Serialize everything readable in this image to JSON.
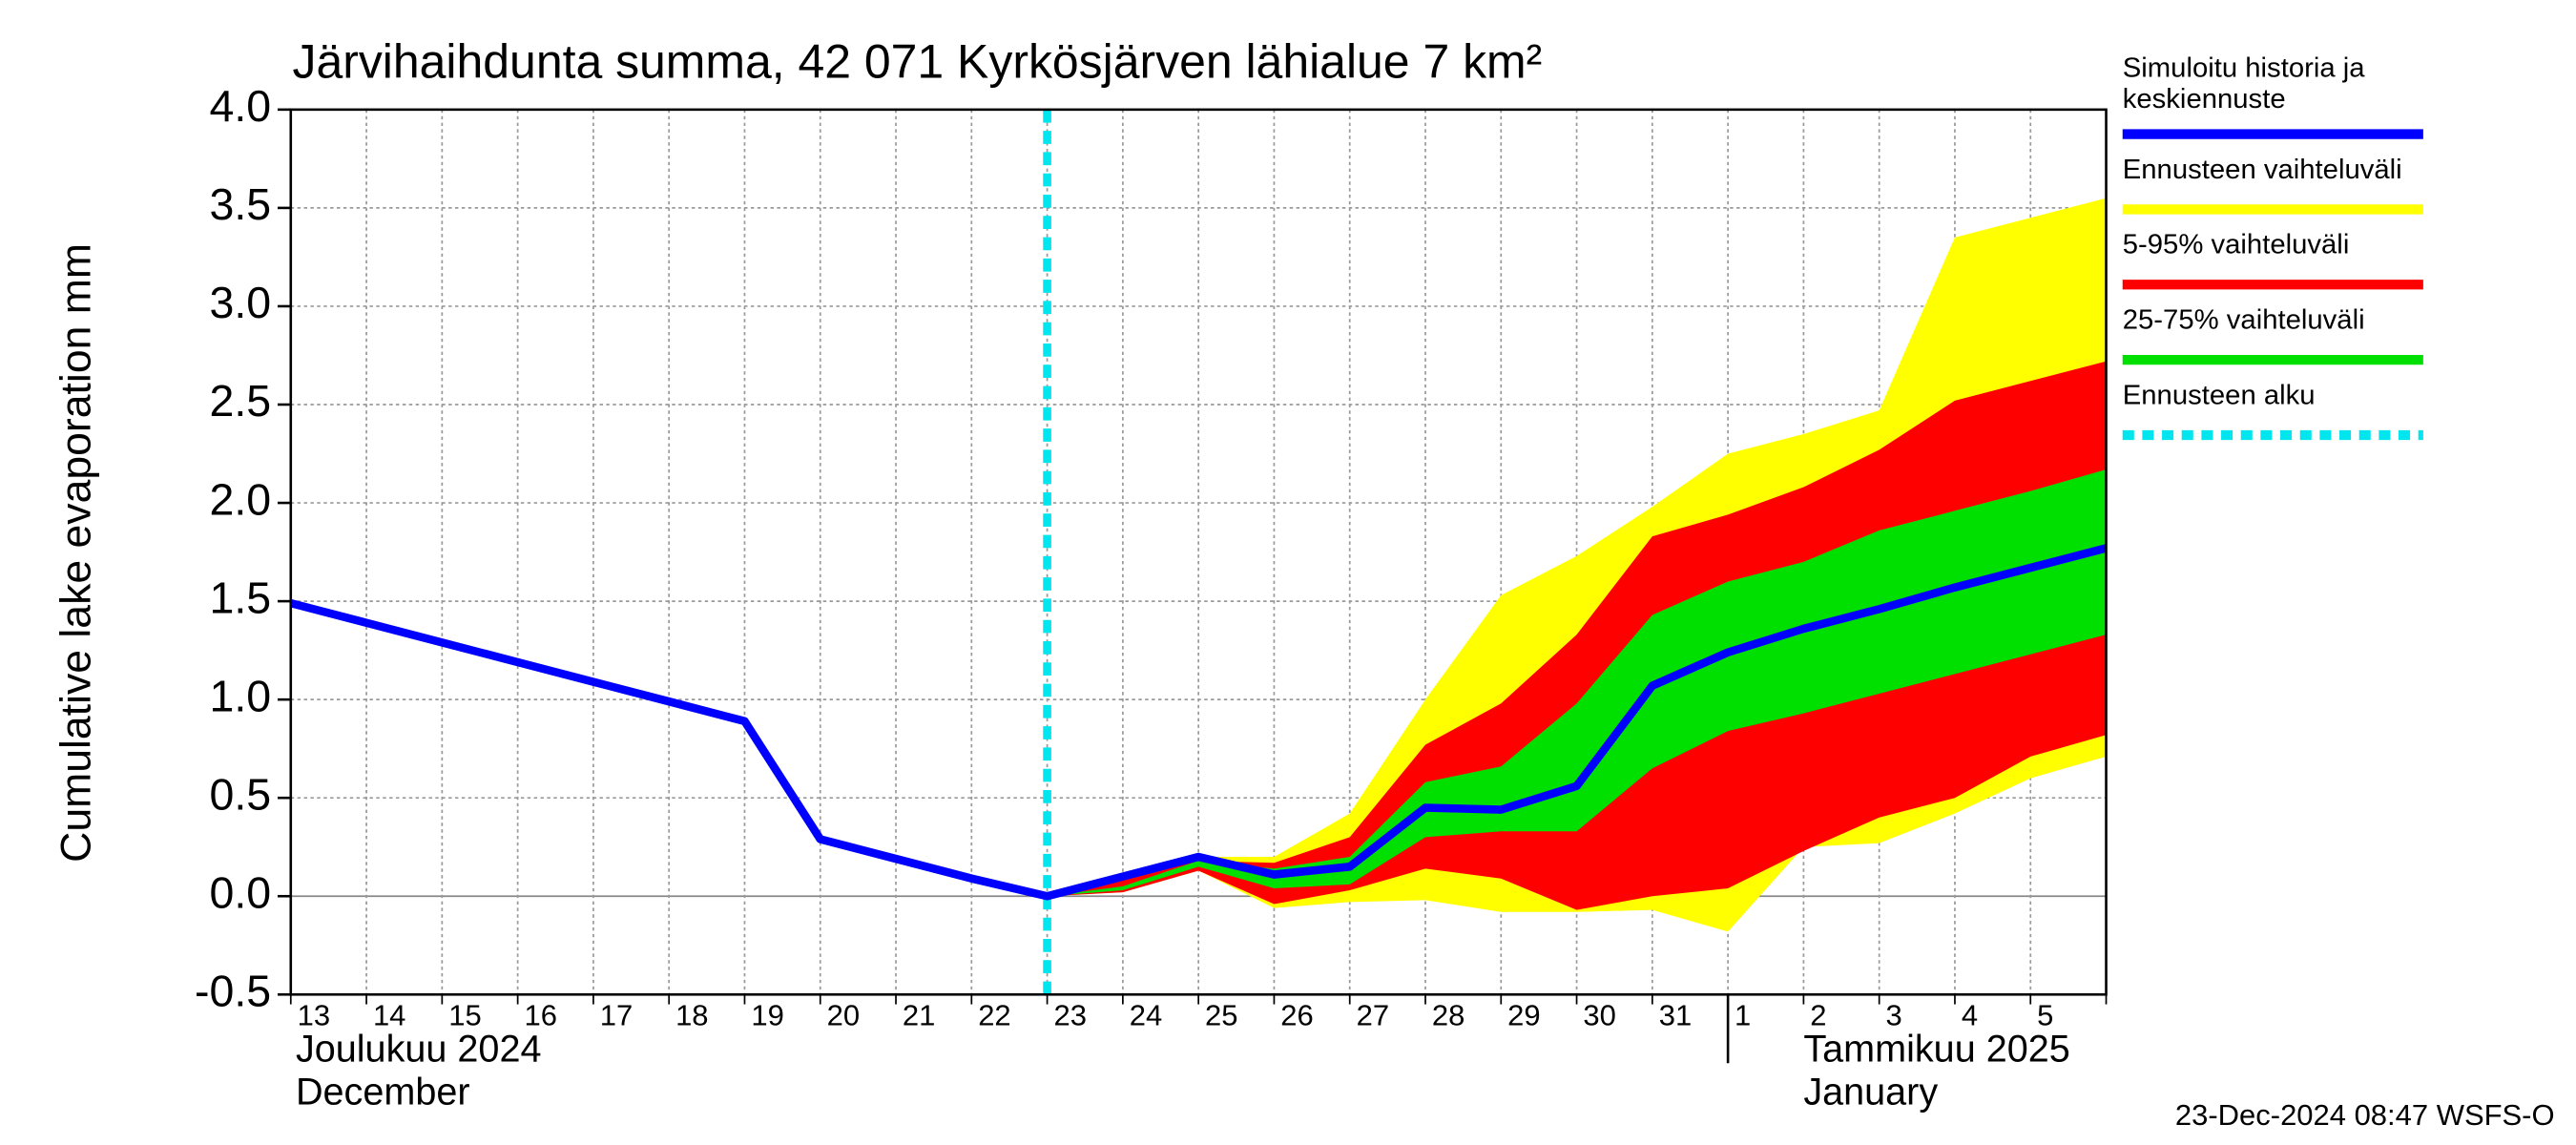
{
  "chart_data": {
    "type": "line",
    "title": "Järvihaihdunta summa, 42 071 Kyrkösjärven lähialue 7 km²",
    "y_label": "Cumulative lake evaporation   mm",
    "month_labels": [
      {
        "at": "13",
        "lines": [
          "Joulukuu  2024",
          "December"
        ]
      },
      {
        "at": "1",
        "lines": [
          "Tammikuu  2025",
          "January"
        ]
      }
    ],
    "timestamp": "23-Dec-2024 08:47 WSFS-O",
    "categories": [
      "13",
      "14",
      "15",
      "16",
      "17",
      "18",
      "19",
      "20",
      "21",
      "22",
      "23",
      "24",
      "25",
      "26",
      "27",
      "28",
      "29",
      "30",
      "31",
      "1",
      "2",
      "3",
      "4",
      "5",
      null
    ],
    "ylim": [
      -0.5,
      4.0
    ],
    "yticks": [
      -0.5,
      {
        "value": 0,
        "label": "0.0"
      },
      0.5,
      {
        "value": 1,
        "label": "1.0"
      },
      1.5,
      {
        "value": 2,
        "label": "2.0"
      },
      2.5,
      {
        "value": 3,
        "label": "3.0"
      },
      3.5,
      {
        "value": 4,
        "label": "4.0"
      }
    ],
    "grid": true,
    "bands": [
      {
        "name": "Ennusteen vaihteluväli",
        "color": "#ffff00",
        "upper": [
          null,
          null,
          null,
          null,
          null,
          null,
          null,
          null,
          null,
          null,
          0,
          0.1,
          0.2,
          0.2,
          0.42,
          1.0,
          1.53,
          1.73,
          1.98,
          2.25,
          2.35,
          2.47,
          3.35,
          3.45,
          3.55
        ],
        "lower": [
          null,
          null,
          null,
          null,
          null,
          null,
          null,
          null,
          null,
          null,
          0,
          0.02,
          0.13,
          -0.06,
          -0.03,
          -0.02,
          -0.08,
          -0.08,
          -0.07,
          -0.18,
          0.25,
          0.27,
          0.42,
          0.6,
          0.71
        ]
      },
      {
        "name": "5-95% vaihteluväli",
        "color": "#ff0000",
        "upper": [
          null,
          null,
          null,
          null,
          null,
          null,
          null,
          null,
          null,
          null,
          0,
          0.08,
          0.18,
          0.17,
          0.3,
          0.77,
          0.98,
          1.33,
          1.83,
          1.94,
          2.08,
          2.27,
          2.52,
          2.62,
          2.72
        ],
        "lower": [
          null,
          null,
          null,
          null,
          null,
          null,
          null,
          null,
          null,
          null,
          0,
          0.02,
          0.13,
          -0.04,
          0.03,
          0.14,
          0.09,
          -0.07,
          0.0,
          0.04,
          0.23,
          0.4,
          0.5,
          0.71,
          0.82
        ]
      },
      {
        "name": "25-75% vaihteluväli",
        "color": "#00e000",
        "upper": [
          null,
          null,
          null,
          null,
          null,
          null,
          null,
          null,
          null,
          null,
          0,
          0.05,
          0.18,
          0.14,
          0.2,
          0.58,
          0.66,
          0.98,
          1.43,
          1.6,
          1.7,
          1.86,
          1.96,
          2.06,
          2.17
        ],
        "lower": [
          null,
          null,
          null,
          null,
          null,
          null,
          null,
          null,
          null,
          null,
          0,
          0.03,
          0.15,
          0.04,
          0.06,
          0.3,
          0.33,
          0.33,
          0.65,
          0.84,
          0.93,
          1.03,
          1.13,
          1.23,
          1.33
        ]
      }
    ],
    "series": [
      {
        "name": "Simuloitu historia ja keskiennuste",
        "color": "#0000ff",
        "values": [
          1.49,
          1.39,
          1.29,
          1.19,
          1.09,
          0.99,
          0.89,
          0.29,
          0.19,
          0.09,
          0.0,
          0.1,
          0.2,
          0.11,
          0.15,
          0.45,
          0.44,
          0.56,
          1.07,
          1.24,
          1.36,
          1.46,
          1.57,
          1.67,
          1.77
        ]
      }
    ],
    "markers": [
      {
        "name": "Ennusteen alku",
        "at": "23",
        "color": "#00e5ee"
      }
    ]
  }
}
